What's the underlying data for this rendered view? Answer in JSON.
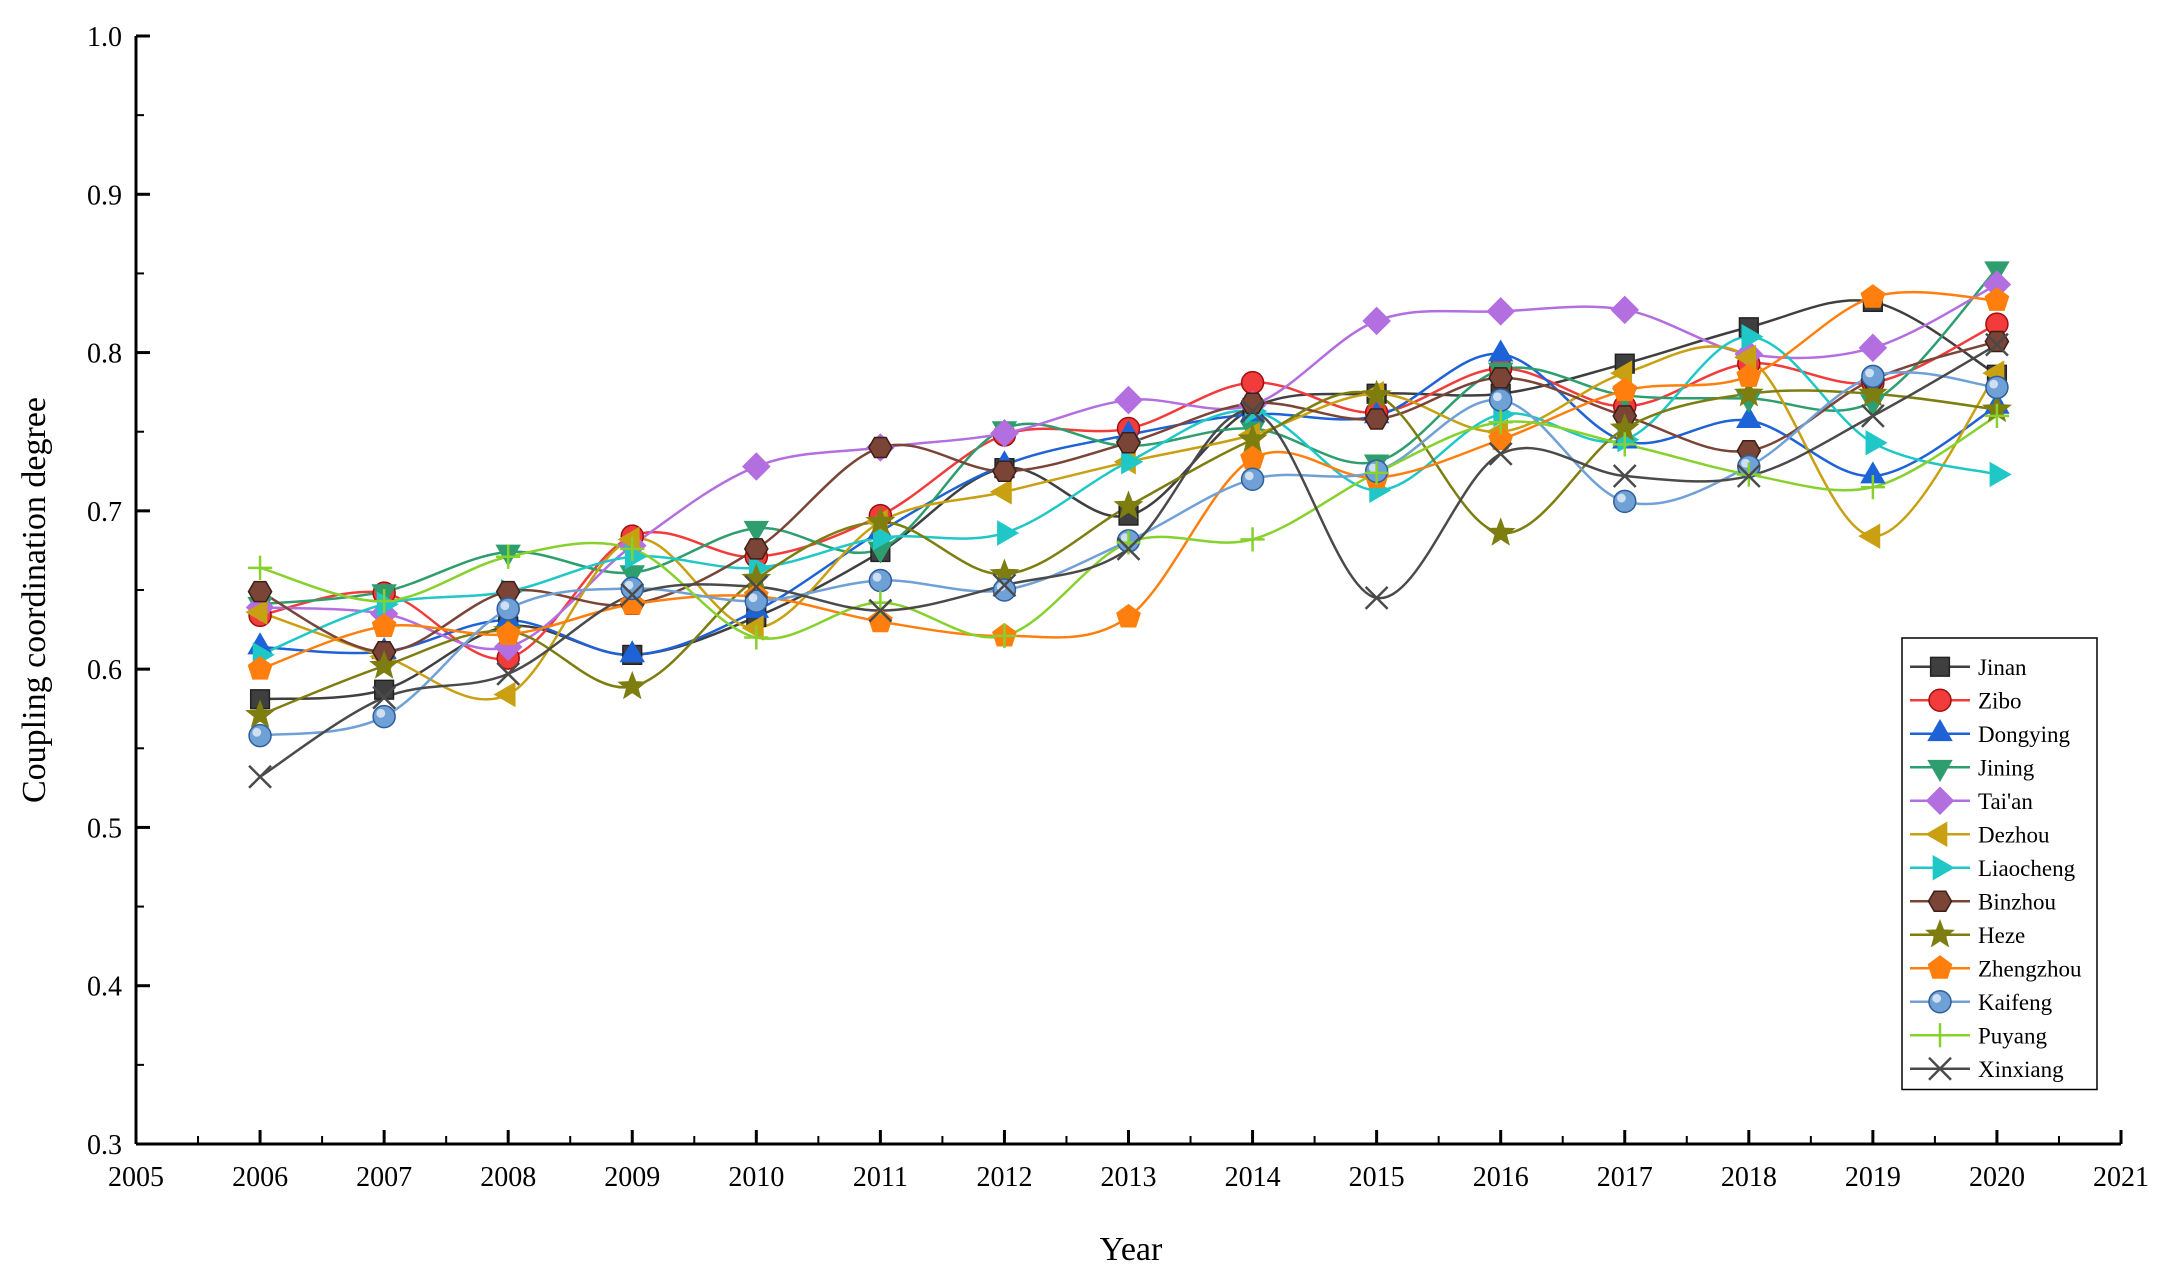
{
  "chart_data": {
    "type": "line",
    "title": "",
    "xlabel": "Year",
    "ylabel": "Coupling coordination degree",
    "xlim": [
      2005,
      2021
    ],
    "ylim": [
      0.3,
      1.0
    ],
    "x_ticks": [
      2005,
      2006,
      2007,
      2008,
      2009,
      2010,
      2011,
      2012,
      2013,
      2014,
      2015,
      2016,
      2017,
      2018,
      2019,
      2020,
      2021
    ],
    "y_ticks": [
      0.3,
      0.4,
      0.5,
      0.6,
      0.7,
      0.8,
      0.9,
      1.0
    ],
    "y_tick_labels": [
      "0.3",
      "0.4",
      "0.5",
      "0.6",
      "0.7",
      "0.8",
      "0.9",
      "1.0"
    ],
    "grid": false,
    "legend_position": "bottom-right",
    "x": [
      2006,
      2007,
      2008,
      2009,
      2010,
      2011,
      2012,
      2013,
      2014,
      2015,
      2016,
      2017,
      2018,
      2019,
      2020
    ],
    "series": [
      {
        "name": "Jinan",
        "marker": "square",
        "color": "#3f3f3f",
        "values": [
          0.581,
          0.587,
          0.627,
          0.609,
          0.633,
          0.674,
          0.727,
          0.697,
          0.765,
          0.774,
          0.774,
          0.793,
          0.816,
          0.832,
          0.786
        ]
      },
      {
        "name": "Zibo",
        "marker": "circle",
        "color": "#f23b3b",
        "values": [
          0.634,
          0.648,
          0.607,
          0.684,
          0.671,
          0.697,
          0.748,
          0.752,
          0.781,
          0.762,
          0.79,
          0.766,
          0.793,
          0.781,
          0.818
        ]
      },
      {
        "name": "Dongying",
        "marker": "triangle-up",
        "color": "#1d62d6",
        "values": [
          0.614,
          0.611,
          0.631,
          0.609,
          0.637,
          0.687,
          0.729,
          0.748,
          0.761,
          0.76,
          0.799,
          0.744,
          0.757,
          0.722,
          0.766
        ]
      },
      {
        "name": "Jining",
        "marker": "triangle-down",
        "color": "#2e9e6e",
        "values": [
          0.641,
          0.649,
          0.674,
          0.661,
          0.689,
          0.676,
          0.752,
          0.741,
          0.752,
          0.731,
          0.789,
          0.773,
          0.771,
          0.769,
          0.853
        ]
      },
      {
        "name": "Tai'an",
        "marker": "diamond",
        "color": "#b36ee0",
        "values": [
          0.639,
          0.635,
          0.614,
          0.678,
          0.728,
          0.74,
          0.749,
          0.77,
          0.767,
          0.82,
          0.826,
          0.827,
          0.799,
          0.803,
          0.843
        ]
      },
      {
        "name": "Dezhou",
        "marker": "triangle-left",
        "color": "#c8a012",
        "values": [
          0.636,
          0.608,
          0.584,
          0.682,
          0.626,
          0.693,
          0.712,
          0.731,
          0.748,
          0.774,
          0.75,
          0.787,
          0.797,
          0.684,
          0.787
        ]
      },
      {
        "name": "Liaocheng",
        "marker": "triangle-right",
        "color": "#1fc7c7",
        "values": [
          0.609,
          0.641,
          0.649,
          0.671,
          0.664,
          0.683,
          0.686,
          0.731,
          0.763,
          0.713,
          0.761,
          0.745,
          0.81,
          0.743,
          0.723
        ]
      },
      {
        "name": "Binzhou",
        "marker": "hexagon",
        "color": "#7a4436",
        "values": [
          0.649,
          0.611,
          0.649,
          0.641,
          0.676,
          0.74,
          0.725,
          0.743,
          0.768,
          0.758,
          0.784,
          0.76,
          0.738,
          0.783,
          0.807
        ]
      },
      {
        "name": "Heze",
        "marker": "star",
        "color": "#7d7d10",
        "values": [
          0.571,
          0.602,
          0.624,
          0.589,
          0.657,
          0.693,
          0.66,
          0.703,
          0.745,
          0.773,
          0.686,
          0.752,
          0.774,
          0.774,
          0.764
        ]
      },
      {
        "name": "Zhengzhou",
        "marker": "pentagon",
        "color": "#ff7f0e",
        "values": [
          0.6,
          0.627,
          0.622,
          0.641,
          0.646,
          0.63,
          0.621,
          0.633,
          0.733,
          0.721,
          0.745,
          0.776,
          0.785,
          0.835,
          0.833
        ]
      },
      {
        "name": "Kaifeng",
        "marker": "ball",
        "color": "#6fa0d6",
        "values": [
          0.558,
          0.57,
          0.638,
          0.651,
          0.643,
          0.656,
          0.65,
          0.681,
          0.72,
          0.725,
          0.77,
          0.706,
          0.728,
          0.785,
          0.778
        ]
      },
      {
        "name": "Puyang",
        "marker": "plus",
        "color": "#86d12c",
        "values": [
          0.664,
          0.643,
          0.671,
          0.676,
          0.62,
          0.642,
          0.621,
          0.68,
          0.682,
          0.724,
          0.756,
          0.742,
          0.723,
          0.715,
          0.76
        ]
      },
      {
        "name": "Xinxiang",
        "marker": "x",
        "color": "#4a4a4a",
        "values": [
          0.532,
          0.582,
          0.597,
          0.647,
          0.652,
          0.637,
          0.653,
          0.676,
          0.763,
          0.645,
          0.736,
          0.722,
          0.722,
          0.76,
          0.805
        ]
      }
    ]
  }
}
